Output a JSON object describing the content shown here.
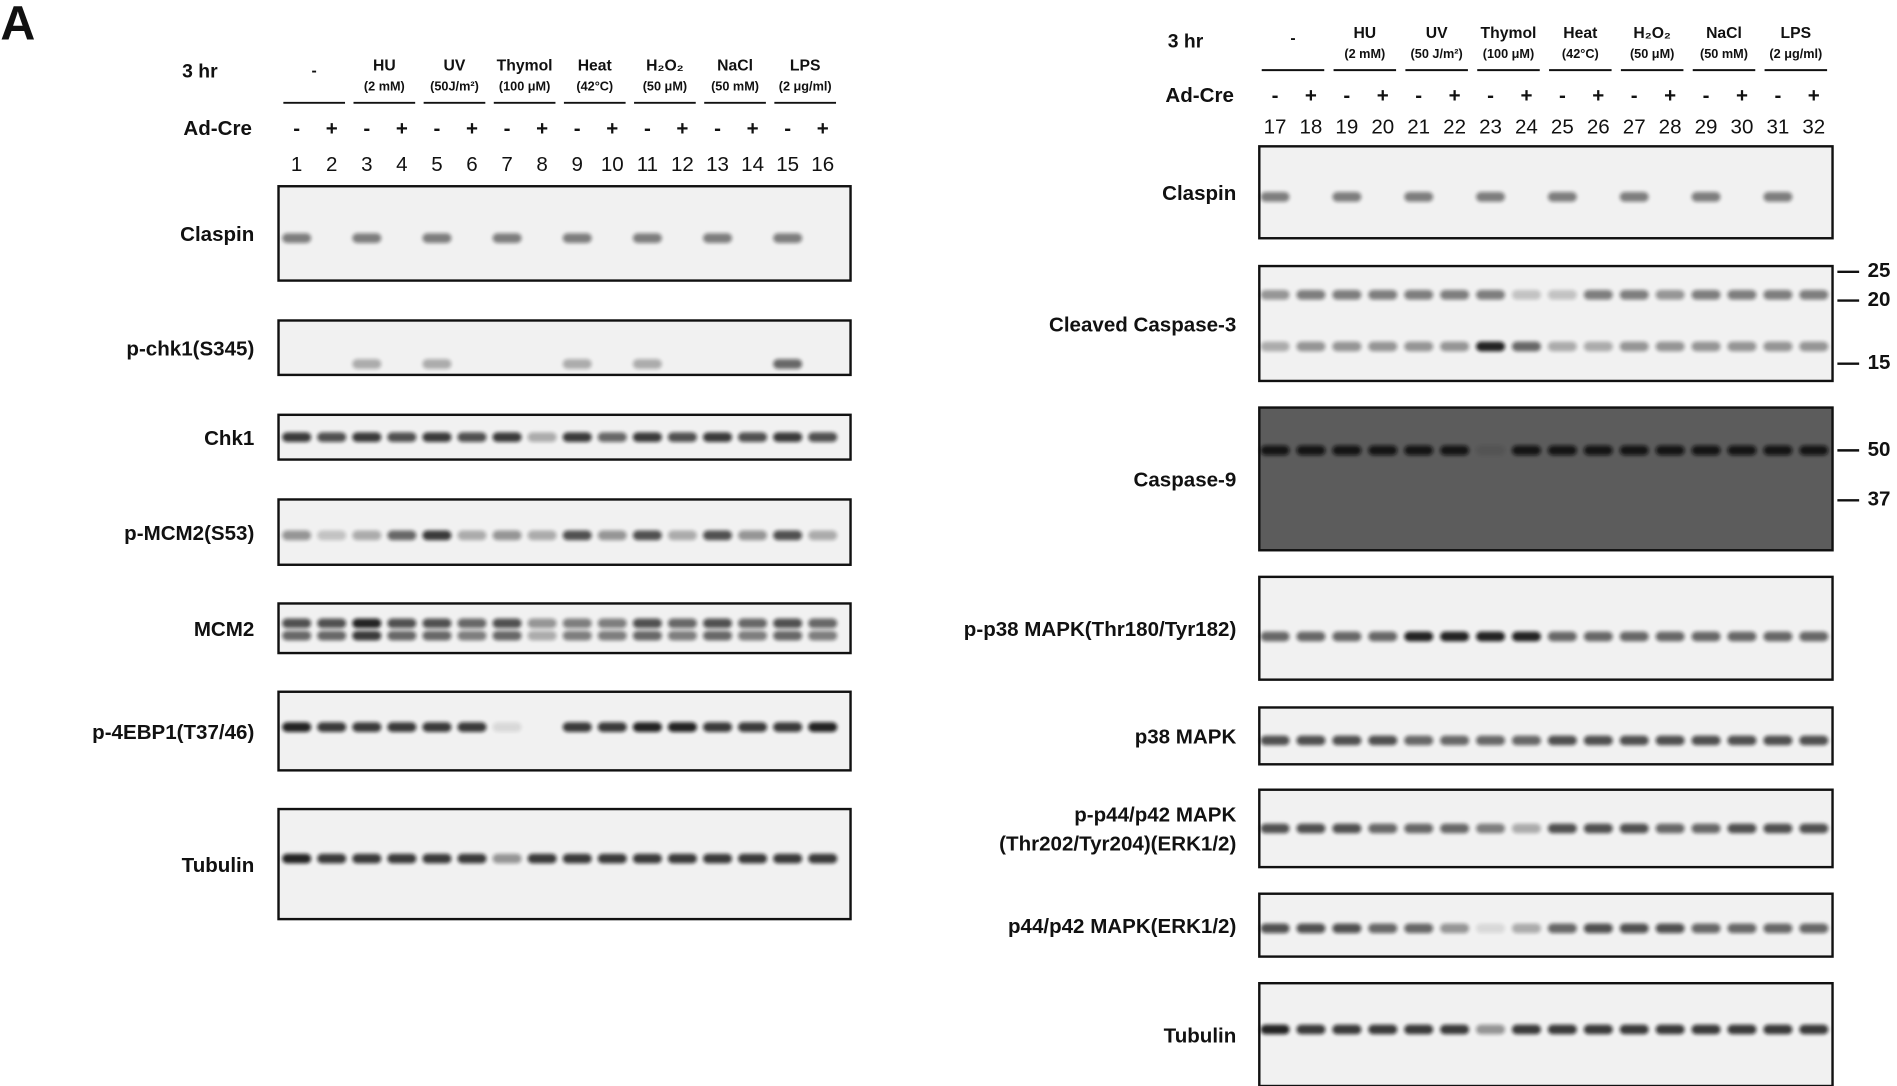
{
  "panel_label": "A",
  "panels": [
    {
      "time": "3 hr",
      "row_label": "Ad-Cre",
      "treatments": [
        {
          "name": "-"
        },
        {
          "name": "HU",
          "sub": "(2 mM)"
        },
        {
          "name": "UV",
          "sub": "(50J/m²)"
        },
        {
          "name": "Thymol",
          "sub": "(100 μM)"
        },
        {
          "name": "Heat",
          "sub": "(42°C)"
        },
        {
          "name": "H₂O₂",
          "sub": "(50 μM)"
        },
        {
          "name": "NaCl",
          "sub": "(50 mM)"
        },
        {
          "name": "LPS",
          "sub": "(2 μg/ml)"
        }
      ],
      "signs": [
        "-",
        "+",
        "-",
        "+",
        "-",
        "+",
        "-",
        "+",
        "-",
        "+",
        "-",
        "+",
        "-",
        "+",
        "-",
        "+"
      ],
      "lanes": [
        1,
        2,
        3,
        4,
        5,
        6,
        7,
        8,
        9,
        10,
        11,
        12,
        13,
        14,
        15,
        16
      ],
      "blots": [
        {
          "label": "Claspin"
        },
        {
          "label": "p-chk1(S345)"
        },
        {
          "label": "Chk1"
        },
        {
          "label": "p-MCM2(S53)"
        },
        {
          "label": "MCM2"
        },
        {
          "label": "p-4EBP1(T37/46)"
        },
        {
          "label": "Tubulin"
        }
      ]
    },
    {
      "time": "3 hr",
      "row_label": "Ad-Cre",
      "treatments": [
        {
          "name": "-"
        },
        {
          "name": "HU",
          "sub": "(2 mM)"
        },
        {
          "name": "UV",
          "sub": "(50 J/m²)"
        },
        {
          "name": "Thymol",
          "sub": "(100 μM)"
        },
        {
          "name": "Heat",
          "sub": "(42°C)"
        },
        {
          "name": "H₂O₂",
          "sub": "(50 μM)"
        },
        {
          "name": "NaCl",
          "sub": "(50 mM)"
        },
        {
          "name": "LPS",
          "sub": "(2 μg/ml)"
        }
      ],
      "signs": [
        "-",
        "+",
        "-",
        "+",
        "-",
        "+",
        "-",
        "+",
        "-",
        "+",
        "-",
        "+",
        "-",
        "+",
        "-",
        "+"
      ],
      "lanes": [
        17,
        18,
        19,
        20,
        21,
        22,
        23,
        24,
        25,
        26,
        27,
        28,
        29,
        30,
        31,
        32
      ],
      "blots": [
        {
          "label": "Claspin"
        },
        {
          "label": "Cleaved Caspase-3",
          "markers": [
            25,
            20,
            15
          ]
        },
        {
          "label": "Caspase-9",
          "markers": [
            50,
            37
          ]
        },
        {
          "label": "p-p38 MAPK(Thr180/Tyr182)"
        },
        {
          "label": "p38 MAPK"
        },
        {
          "label": [
            "p-p44/p42 MAPK",
            "(Thr202/Tyr204)(ERK1/2)"
          ]
        },
        {
          "label": "p44/p42 MAPK(ERK1/2)"
        },
        {
          "label": "Tubulin"
        }
      ]
    }
  ]
}
